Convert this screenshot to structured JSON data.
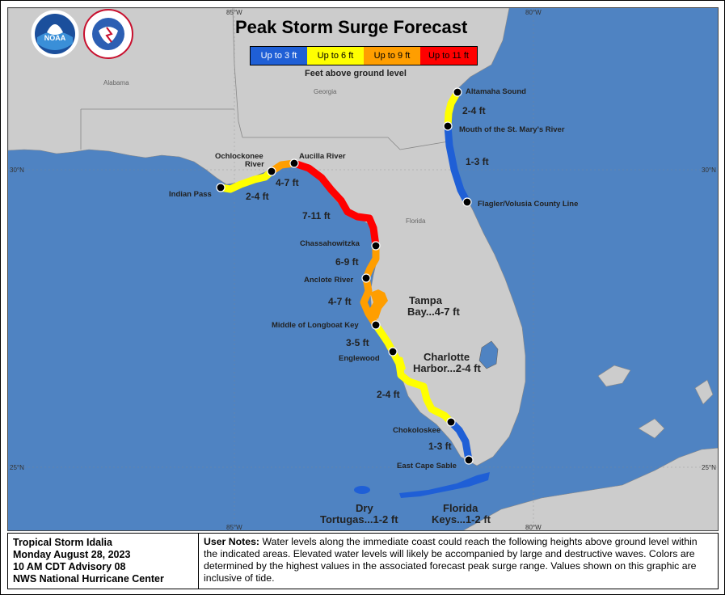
{
  "title": "Peak Storm Surge Forecast",
  "legend": {
    "items": [
      {
        "label": "Up to 3 ft",
        "color": "#1f5fd6",
        "text_color": "#ffffff"
      },
      {
        "label": "Up to 6 ft",
        "color": "#ffff00",
        "text_color": "#000000"
      },
      {
        "label": "Up to 9 ft",
        "color": "#ff9e00",
        "text_color": "#000000"
      },
      {
        "label": "Up to 11 ft",
        "color": "#ff0000",
        "text_color": "#000000"
      }
    ],
    "caption": "Feet above ground level"
  },
  "logos": {
    "noaa": "NOAA",
    "nws": "NATIONAL WEATHER SERVICE"
  },
  "gridlines": {
    "lon": [
      "85°W",
      "80°W"
    ],
    "lat": [
      "30°N",
      "25°N"
    ]
  },
  "states": [
    "Alabama",
    "Georgia",
    "Florida"
  ],
  "points": {
    "indian_pass": "Indian Pass",
    "ochlockonee": [
      "Ochlockonee",
      "River"
    ],
    "aucilla": "Aucilla River",
    "chassahowitzka": "Chassahowitzka",
    "anclote": "Anclote River",
    "longboat": "Middle of Longboat Key",
    "englewood": "Englewood",
    "chokoloskee": "Chokoloskee",
    "cape_sable": "East Cape Sable",
    "altamaha": "Altamaha Sound",
    "st_marys": "Mouth of the St. Mary's River",
    "flagler": "Flagler/Volusia County Line"
  },
  "ranges": {
    "indian_ochlockonee": "2-4 ft",
    "ochlockonee_aucilla": "4-7 ft",
    "aucilla_chassahowitzka": "7-11 ft",
    "chassahowitzka_anclote": "6-9 ft",
    "anclote_longboat": "4-7 ft",
    "longboat_englewood": "3-5 ft",
    "englewood_chokoloskee": "2-4 ft",
    "chokoloskee_capesable": "1-3 ft",
    "altamaha_stmarys": "2-4 ft",
    "stmarys_flagler": "1-3 ft"
  },
  "bays": {
    "tampa": [
      "Tampa",
      "Bay...4-7 ft"
    ],
    "charlotte": [
      "Charlotte",
      "Harbor...2-4 ft"
    ],
    "dry_tortugas": [
      "Dry",
      "Tortugas...1-2 ft"
    ],
    "florida_keys": [
      "Florida",
      "Keys...1-2 ft"
    ]
  },
  "advisory": [
    "Tropical Storm Idalia",
    "Monday August 28, 2023",
    "10 AM CDT Advisory 08",
    "NWS National Hurricane Center"
  ],
  "notes": {
    "label": "User Notes:",
    "text": "Water levels along the immediate coast could reach the following heights above ground level within the indicated areas. Elevated water levels will likely be accompanied by large and destructive waves. Colors are determined by the highest values in the associated forecast peak surge range. Values shown on this graphic are inclusive of tide."
  }
}
